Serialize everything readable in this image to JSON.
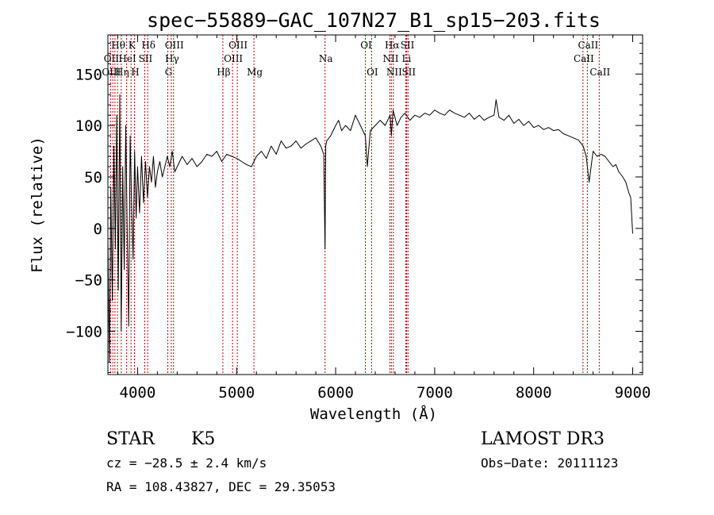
{
  "chart_data": {
    "type": "line",
    "title": "spec−55889−GAC_107N27_B1_sp15−203.fits",
    "xlabel": "Wavelength (Å)",
    "ylabel": "Flux (relative)",
    "xlim": [
      3700,
      9100
    ],
    "ylim": [
      -142,
      188
    ],
    "x_ticks": [
      4000,
      5000,
      6000,
      7000,
      8000,
      9000
    ],
    "x_tick_labels": [
      "4000",
      "5000",
      "6000",
      "7000",
      "8000",
      "9000"
    ],
    "y_ticks": [
      -100,
      -50,
      0,
      50,
      100,
      150
    ],
    "y_tick_labels": [
      "−100",
      "−50",
      "0",
      "50",
      "100",
      "150"
    ],
    "grid": false,
    "series": [
      {
        "name": "flux",
        "color": "#000000",
        "x": [
          3700,
          3715,
          3730,
          3745,
          3760,
          3775,
          3790,
          3805,
          3820,
          3835,
          3850,
          3865,
          3880,
          3895,
          3910,
          3925,
          3940,
          3955,
          3970,
          3985,
          4000,
          4020,
          4040,
          4060,
          4080,
          4100,
          4120,
          4140,
          4160,
          4180,
          4200,
          4225,
          4250,
          4275,
          4300,
          4325,
          4350,
          4375,
          4400,
          4450,
          4500,
          4550,
          4600,
          4650,
          4700,
          4750,
          4800,
          4850,
          4900,
          4950,
          5000,
          5050,
          5100,
          5150,
          5200,
          5250,
          5300,
          5350,
          5400,
          5450,
          5500,
          5550,
          5600,
          5650,
          5700,
          5750,
          5800,
          5850,
          5880,
          5893,
          5900,
          5910,
          5950,
          6000,
          6030,
          6060,
          6100,
          6150,
          6200,
          6250,
          6300,
          6320,
          6350,
          6400,
          6450,
          6500,
          6550,
          6563,
          6580,
          6620,
          6660,
          6700,
          6750,
          6800,
          6850,
          6900,
          6950,
          7000,
          7050,
          7100,
          7150,
          7200,
          7250,
          7300,
          7350,
          7400,
          7450,
          7500,
          7550,
          7600,
          7620,
          7650,
          7700,
          7750,
          7800,
          7850,
          7900,
          7950,
          8000,
          8050,
          8100,
          8150,
          8200,
          8250,
          8300,
          8350,
          8400,
          8450,
          8500,
          8530,
          8560,
          8600,
          8640,
          8680,
          8720,
          8760,
          8800,
          8830,
          8860,
          8900,
          8930,
          8960,
          8980,
          9000
        ],
        "y": [
          -10,
          -130,
          40,
          -70,
          80,
          -20,
          110,
          -60,
          130,
          -100,
          60,
          -40,
          100,
          0,
          -95,
          90,
          20,
          -30,
          75,
          10,
          60,
          15,
          70,
          25,
          65,
          30,
          60,
          45,
          70,
          40,
          55,
          65,
          50,
          60,
          70,
          60,
          75,
          55,
          60,
          70,
          62,
          68,
          60,
          65,
          72,
          70,
          75,
          65,
          72,
          70,
          68,
          65,
          62,
          60,
          70,
          75,
          68,
          80,
          72,
          85,
          78,
          80,
          85,
          78,
          82,
          85,
          88,
          80,
          72,
          -20,
          80,
          85,
          90,
          100,
          105,
          95,
          100,
          95,
          110,
          100,
          90,
          60,
          95,
          100,
          105,
          100,
          110,
          90,
          115,
          100,
          108,
          112,
          105,
          110,
          108,
          112,
          110,
          115,
          112,
          110,
          115,
          112,
          110,
          108,
          112,
          106,
          110,
          105,
          108,
          110,
          125,
          108,
          105,
          110,
          102,
          106,
          100,
          104,
          98,
          100,
          96,
          98,
          95,
          96,
          92,
          90,
          88,
          86,
          80,
          70,
          45,
          75,
          70,
          72,
          70,
          65,
          60,
          62,
          55,
          50,
          45,
          35,
          30,
          -5
        ]
      }
    ],
    "annotations": [
      {
        "text": "Hθ",
        "x": 3797,
        "row": 1
      },
      {
        "text": "K",
        "x": 3934,
        "row": 1
      },
      {
        "text": "Hδ",
        "x": 4102,
        "row": 1
      },
      {
        "text": "OIII",
        "x": 4363,
        "row": 1
      },
      {
        "text": "OIII",
        "x": 5007,
        "row": 1
      },
      {
        "text": "OI",
        "x": 6300,
        "row": 1
      },
      {
        "text": "Hα",
        "x": 6563,
        "row": 1
      },
      {
        "text": "SII",
        "x": 6717,
        "row": 1
      },
      {
        "text": "CaII",
        "x": 8542,
        "row": 1
      },
      {
        "text": "OII",
        "x": 3727,
        "row": 2
      },
      {
        "text": "HeI",
        "x": 3889,
        "row": 2
      },
      {
        "text": "SII",
        "x": 4072,
        "row": 2
      },
      {
        "text": "Hγ",
        "x": 4340,
        "row": 2
      },
      {
        "text": "OIII",
        "x": 4959,
        "row": 2
      },
      {
        "text": "Na",
        "x": 5893,
        "row": 2
      },
      {
        "text": "NII",
        "x": 6548,
        "row": 2
      },
      {
        "text": "Li",
        "x": 6708,
        "row": 2
      },
      {
        "text": "CaII",
        "x": 8498,
        "row": 2
      },
      {
        "text": "OIII",
        "x": 3727,
        "row": 3
      },
      {
        "text": "Hη",
        "x": 3835,
        "row": 3
      },
      {
        "text": "H",
        "x": 3968,
        "row": 3
      },
      {
        "text": "G",
        "x": 4305,
        "row": 3
      },
      {
        "text": "Hβ",
        "x": 4861,
        "row": 3
      },
      {
        "text": "Mg",
        "x": 5175,
        "row": 3
      },
      {
        "text": "OI",
        "x": 6363,
        "row": 3
      },
      {
        "text": "NII",
        "x": 6583,
        "row": 3
      },
      {
        "text": "SII",
        "x": 6731,
        "row": 3
      },
      {
        "text": "CaII",
        "x": 8662,
        "row": 3
      }
    ],
    "reference_lines": [
      3727,
      3750,
      3771,
      3797,
      3835,
      3889,
      3934,
      3968,
      4072,
      4102,
      4305,
      4340,
      4363,
      4861,
      4959,
      5007,
      5175,
      5893,
      6300,
      6363,
      6548,
      6563,
      6583,
      6708,
      6717,
      6731,
      8498,
      8542,
      8662
    ],
    "reference_line_color": "#c00000"
  },
  "info": {
    "object_type": "STAR",
    "subclass": "K5",
    "survey": "LAMOST DR3",
    "cz": "cz = −28.5 ± 2.4 km/s",
    "obs_date": "Obs−Date: 20111123",
    "coords": "RA = 108.43827, DEC =  29.35053"
  }
}
